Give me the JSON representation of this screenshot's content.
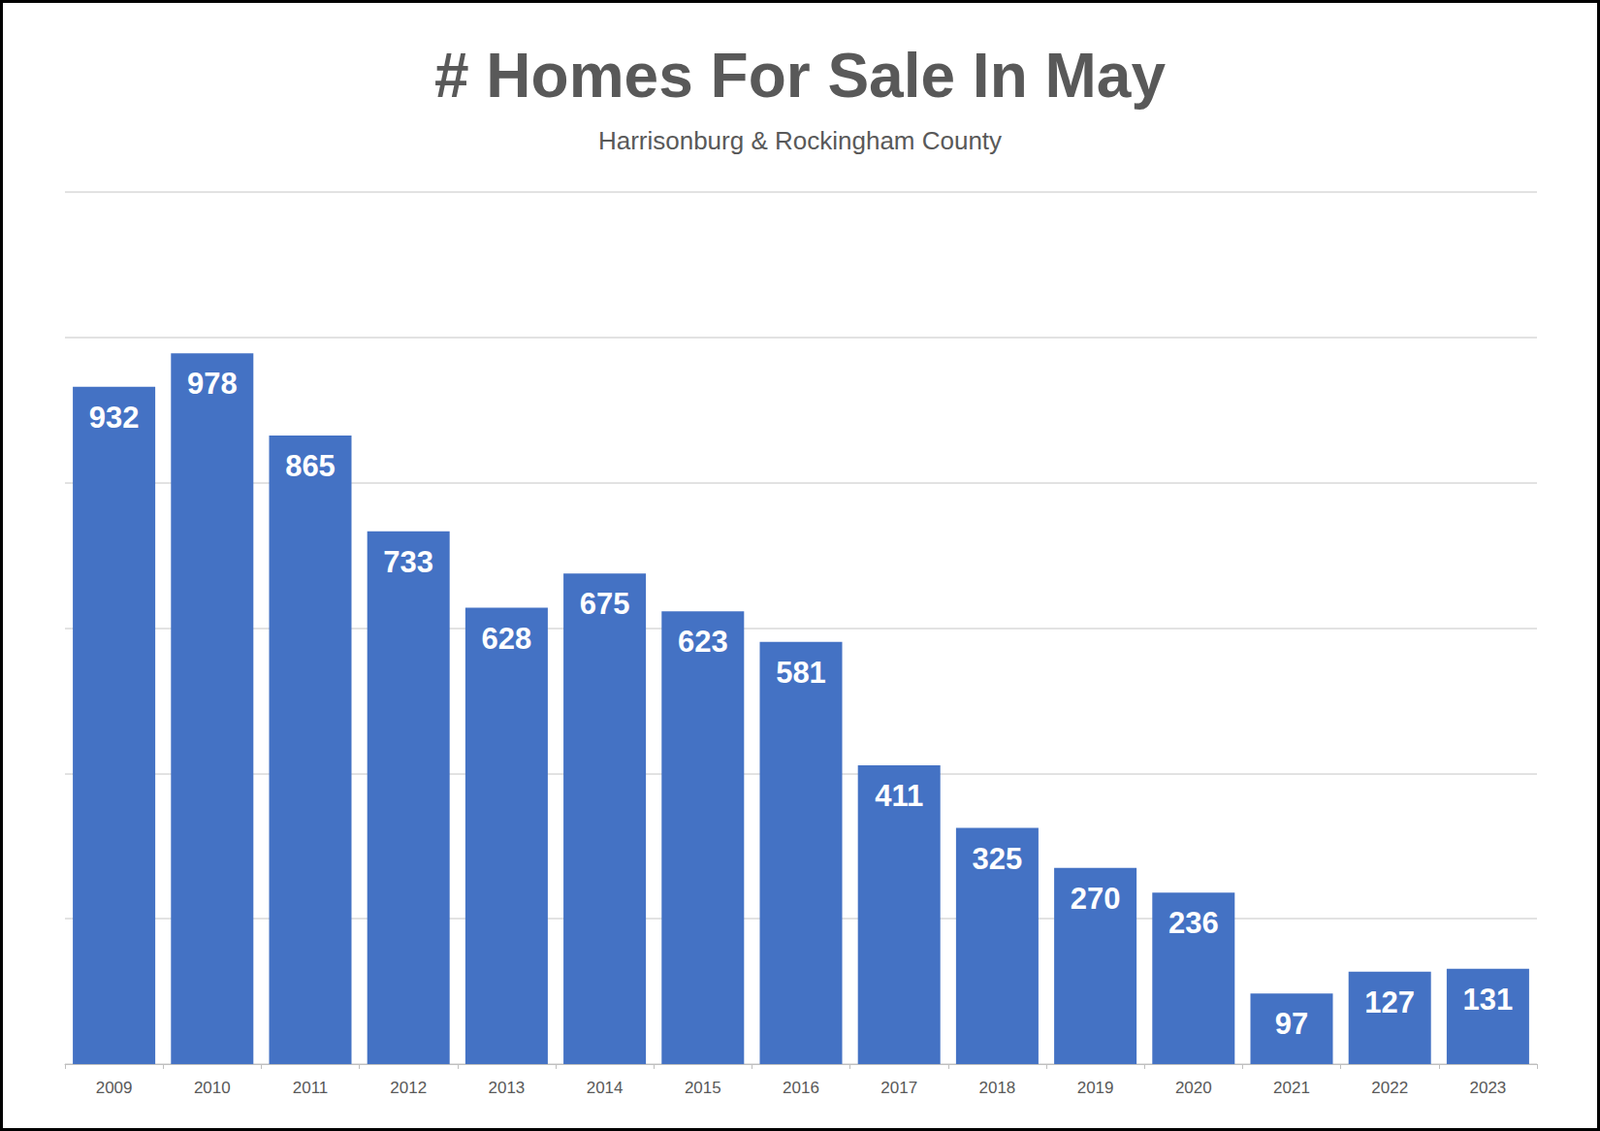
{
  "chart_data": {
    "type": "bar",
    "title": "# Homes For Sale In May",
    "subtitle": "Harrisonburg & Rockingham County",
    "categories": [
      "2009",
      "2010",
      "2011",
      "2012",
      "2013",
      "2014",
      "2015",
      "2016",
      "2017",
      "2018",
      "2019",
      "2020",
      "2021",
      "2022",
      "2023"
    ],
    "values": [
      932,
      978,
      865,
      733,
      628,
      675,
      623,
      581,
      411,
      325,
      270,
      236,
      97,
      127,
      131
    ],
    "color": "#4472c4",
    "ylim": [
      0,
      1200
    ],
    "yticks": [
      0,
      200,
      400,
      600,
      800,
      1000,
      1200
    ],
    "grid": true,
    "data_labels": true,
    "tick_labels": "x"
  }
}
